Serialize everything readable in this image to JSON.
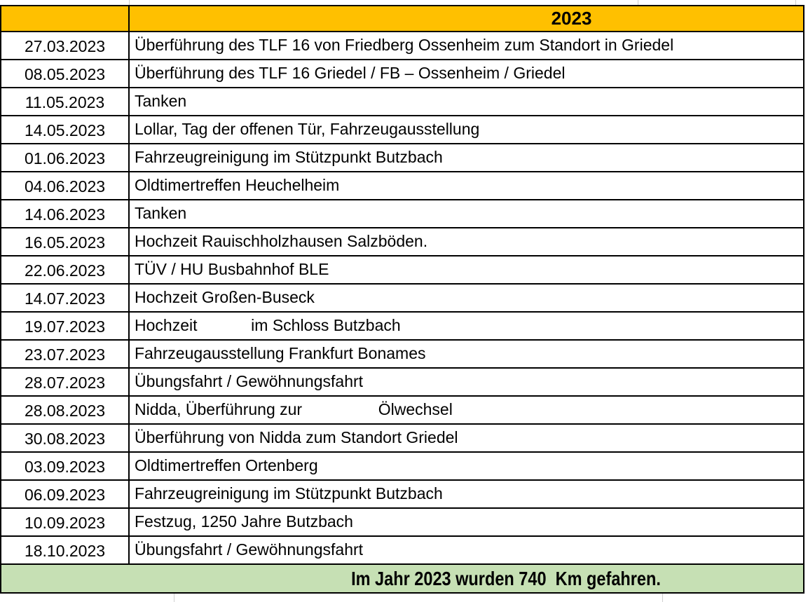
{
  "sheet": {
    "header": {
      "year": "2023"
    },
    "columns": {
      "date": "date",
      "description": "description"
    },
    "rows": [
      {
        "date": "27.03.2023",
        "description": "Überführung des TLF 16 von Friedberg Ossenheim zum Standort in Griedel"
      },
      {
        "date": "08.05.2023",
        "description": "Überführung des TLF 16 Griedel / FB – Ossenheim / Griedel"
      },
      {
        "date": "11.05.2023",
        "description": "Tanken"
      },
      {
        "date": "14.05.2023",
        "description": "Lollar, Tag der offenen Tür, Fahrzeugausstellung"
      },
      {
        "date": "01.06.2023",
        "description": "Fahrzeugreinigung im Stützpunkt Butzbach"
      },
      {
        "date": "04.06.2023",
        "description": "Oldtimertreffen Heuchelheim"
      },
      {
        "date": "14.06.2023",
        "description": "Tanken"
      },
      {
        "date": "16.05.2023",
        "description": "Hochzeit Rauischholzhausen Salzböden."
      },
      {
        "date": "22.06.2023",
        "description": "TÜV / HU Busbahnhof BLE"
      },
      {
        "date": "14.07.2023",
        "description": "Hochzeit Großen-Buseck"
      },
      {
        "date": "19.07.2023",
        "description": "Hochzeit            im Schloss Butzbach"
      },
      {
        "date": "23.07.2023",
        "description": "Fahrzeugausstellung Frankfurt Bonames"
      },
      {
        "date": "28.07.2023",
        "description": "Übungsfahrt / Gewöhnungsfahrt"
      },
      {
        "date": "28.08.2023",
        "description": "Nidda, Überführung zur                 Ölwechsel"
      },
      {
        "date": "30.08.2023",
        "description": "Überführung von Nidda zum Standort Griedel"
      },
      {
        "date": "03.09.2023",
        "description": "Oldtimertreffen Ortenberg"
      },
      {
        "date": "06.09.2023",
        "description": "Fahrzeugreinigung im Stützpunkt Butzbach"
      },
      {
        "date": "10.09.2023",
        "description": "Festzug, 1250 Jahre Butzbach"
      },
      {
        "date": "18.10.2023",
        "description": "Übungsfahrt / Gewöhnungsfahrt"
      }
    ],
    "footer": {
      "summary": "Im Jahr 2023 wurden 740  Km gefahren."
    },
    "colors": {
      "header_bg": "#FFC000",
      "footer_bg": "#C6E0B4",
      "border": "#000000",
      "gridline": "#CFCFCF",
      "text": "#000000"
    }
  }
}
